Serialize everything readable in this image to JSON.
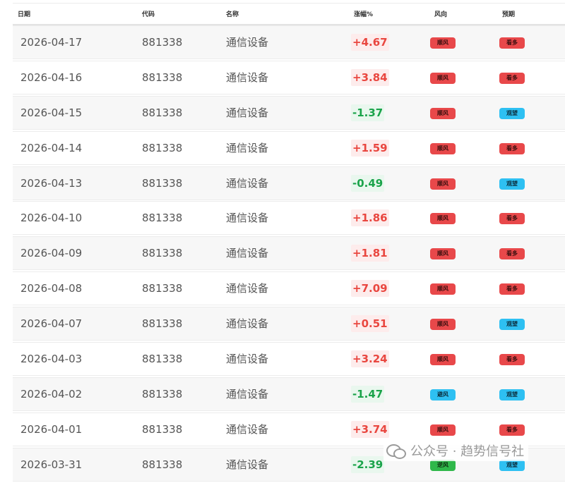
{
  "header": {
    "date": "日期",
    "code": "代码",
    "name": "名称",
    "change": "涨幅%",
    "wind": "风向",
    "expect": "预期"
  },
  "rows": [
    {
      "date": "2026-04-17",
      "code": "881338",
      "name": "通信设备",
      "change": "+4.67",
      "dir": "up",
      "wind": "顺风",
      "wind_color": "red",
      "expect": "看多",
      "expect_color": "red"
    },
    {
      "date": "2026-04-16",
      "code": "881338",
      "name": "通信设备",
      "change": "+3.84",
      "dir": "up",
      "wind": "顺风",
      "wind_color": "red",
      "expect": "看多",
      "expect_color": "red"
    },
    {
      "date": "2026-04-15",
      "code": "881338",
      "name": "通信设备",
      "change": "-1.37",
      "dir": "down",
      "wind": "顺风",
      "wind_color": "red",
      "expect": "观望",
      "expect_color": "blue"
    },
    {
      "date": "2026-04-14",
      "code": "881338",
      "name": "通信设备",
      "change": "+1.59",
      "dir": "up",
      "wind": "顺风",
      "wind_color": "red",
      "expect": "看多",
      "expect_color": "red"
    },
    {
      "date": "2026-04-13",
      "code": "881338",
      "name": "通信设备",
      "change": "-0.49",
      "dir": "down",
      "wind": "顺风",
      "wind_color": "red",
      "expect": "观望",
      "expect_color": "blue"
    },
    {
      "date": "2026-04-10",
      "code": "881338",
      "name": "通信设备",
      "change": "+1.86",
      "dir": "up",
      "wind": "顺风",
      "wind_color": "red",
      "expect": "看多",
      "expect_color": "red"
    },
    {
      "date": "2026-04-09",
      "code": "881338",
      "name": "通信设备",
      "change": "+1.81",
      "dir": "up",
      "wind": "顺风",
      "wind_color": "red",
      "expect": "看多",
      "expect_color": "red"
    },
    {
      "date": "2026-04-08",
      "code": "881338",
      "name": "通信设备",
      "change": "+7.09",
      "dir": "up",
      "wind": "顺风",
      "wind_color": "red",
      "expect": "看多",
      "expect_color": "red"
    },
    {
      "date": "2026-04-07",
      "code": "881338",
      "name": "通信设备",
      "change": "+0.51",
      "dir": "up",
      "wind": "顺风",
      "wind_color": "red",
      "expect": "观望",
      "expect_color": "blue"
    },
    {
      "date": "2026-04-03",
      "code": "881338",
      "name": "通信设备",
      "change": "+3.24",
      "dir": "up",
      "wind": "顺风",
      "wind_color": "red",
      "expect": "看多",
      "expect_color": "red"
    },
    {
      "date": "2026-04-02",
      "code": "881338",
      "name": "通信设备",
      "change": "-1.47",
      "dir": "down",
      "wind": "避风",
      "wind_color": "blue",
      "expect": "观望",
      "expect_color": "blue"
    },
    {
      "date": "2026-04-01",
      "code": "881338",
      "name": "通信设备",
      "change": "+3.74",
      "dir": "up",
      "wind": "顺风",
      "wind_color": "red",
      "expect": "看多",
      "expect_color": "red"
    },
    {
      "date": "2026-03-31",
      "code": "881338",
      "name": "通信设备",
      "change": "-2.39",
      "dir": "down",
      "wind": "逆风",
      "wind_color": "green",
      "expect": "观望",
      "expect_color": "blue"
    }
  ],
  "colors": {
    "up": "#e9463f",
    "down": "#1aa34a",
    "badge_red": "#e8484a",
    "badge_blue": "#2ec0f2",
    "badge_green": "#2fb84a"
  },
  "watermark": {
    "icon": "wechat-icon",
    "text": "公众号 · 趋势信号社"
  }
}
